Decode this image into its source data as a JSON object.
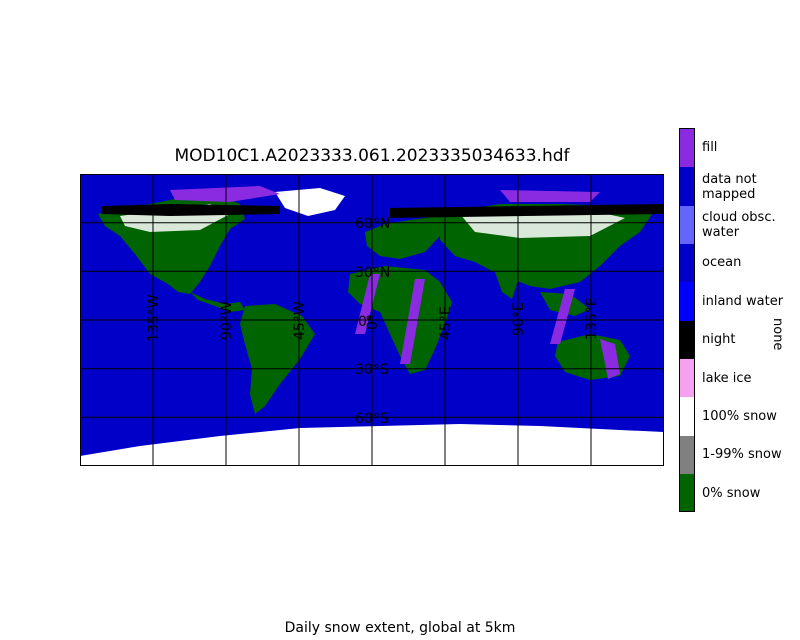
{
  "title": "MOD10C1.A2023333.061.2023335034633.hdf",
  "caption": "Daily snow extent, global at 5km",
  "colorbar": {
    "title": "none",
    "classes": [
      {
        "label": "fill",
        "color": "#8a2be2"
      },
      {
        "label": "data not\nmapped",
        "color": "#0000c8"
      },
      {
        "label": "cloud obsc.\nwater",
        "color": "#6464ff"
      },
      {
        "label": "ocean",
        "color": "#0000c8"
      },
      {
        "label": "inland water",
        "color": "#0000ff"
      },
      {
        "label": "night",
        "color": "#000000"
      },
      {
        "label": "lake ice",
        "color": "#f5a0f0"
      },
      {
        "label": "100% snow",
        "color": "#ffffff"
      },
      {
        "label": "1-99% snow",
        "color": "#808080"
      },
      {
        "label": "0% snow",
        "color": "#006400"
      }
    ]
  },
  "map": {
    "longitude_labels": [
      "135°W",
      "90°W",
      "45°W",
      "0°",
      "45°E",
      "90°E",
      "135°E"
    ],
    "latitude_labels": [
      "60°N",
      "30°N",
      "0°",
      "30°S",
      "60°S"
    ],
    "lon_lines": [
      -135,
      -90,
      -45,
      0,
      45,
      90,
      135
    ],
    "lat_lines": [
      60,
      30,
      0,
      -30,
      -60
    ],
    "colors": {
      "ocean": "#0000c8",
      "land": "#006400",
      "snow": "#ffffff",
      "night": "#000000",
      "fill": "#8a2be2"
    }
  }
}
